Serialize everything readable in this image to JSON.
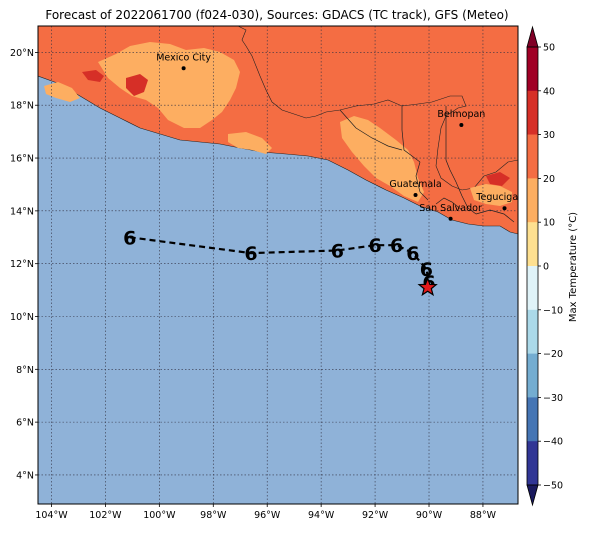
{
  "title": "Forecast of 2022061700 (f024-030), Sources: GDACS (TC track), GFS (Meteo)",
  "colorbar": {
    "label": "Max Temperature (°C)",
    "ticks": [
      "50",
      "40",
      "30",
      "20",
      "10",
      "0",
      "−10",
      "−20",
      "−30",
      "−40",
      "−50"
    ],
    "colors": [
      "#a00026",
      "#d62f27",
      "#f46d43",
      "#fdae61",
      "#fee090",
      "#ffffbf",
      "#e0f3f8",
      "#abd9e9",
      "#74add1",
      "#4575b4",
      "#313695"
    ]
  },
  "map": {
    "lon_range": [
      -104.5,
      -86.7
    ],
    "lat_range": [
      2.9,
      21.0
    ],
    "x_ticks": [
      "104°W",
      "102°W",
      "100°W",
      "98°W",
      "96°W",
      "94°W",
      "92°W",
      "90°W",
      "88°W"
    ],
    "y_ticks": [
      "20°N",
      "18°N",
      "16°N",
      "14°N",
      "12°N",
      "10°N",
      "8°N",
      "6°N",
      "4°N"
    ],
    "ocean_color": "#8fb2d8",
    "grid": "dotted"
  },
  "cities": [
    {
      "name": "Mexico City",
      "lon": -99.1,
      "lat": 19.4
    },
    {
      "name": "Belmopan",
      "lon": -88.8,
      "lat": 17.25
    },
    {
      "name": "Guatemala",
      "lon": -90.5,
      "lat": 14.6
    },
    {
      "name": "San Salvador",
      "lon": -89.2,
      "lat": 13.7
    },
    {
      "name": "Tegucigalpa",
      "lon": -87.2,
      "lat": 14.1
    }
  ],
  "track": {
    "points": [
      {
        "lon": -101.1,
        "lat": 13.0
      },
      {
        "lon": -96.6,
        "lat": 12.4
      },
      {
        "lon": -93.4,
        "lat": 12.5
      },
      {
        "lon": -92.0,
        "lat": 12.7
      },
      {
        "lon": -91.2,
        "lat": 12.7
      },
      {
        "lon": -90.6,
        "lat": 12.4
      },
      {
        "lon": -90.1,
        "lat": 11.8
      },
      {
        "lon": -90.0,
        "lat": 11.3
      }
    ],
    "current_position": {
      "lon": -90.05,
      "lat": 11.1
    },
    "symbol": "6"
  }
}
